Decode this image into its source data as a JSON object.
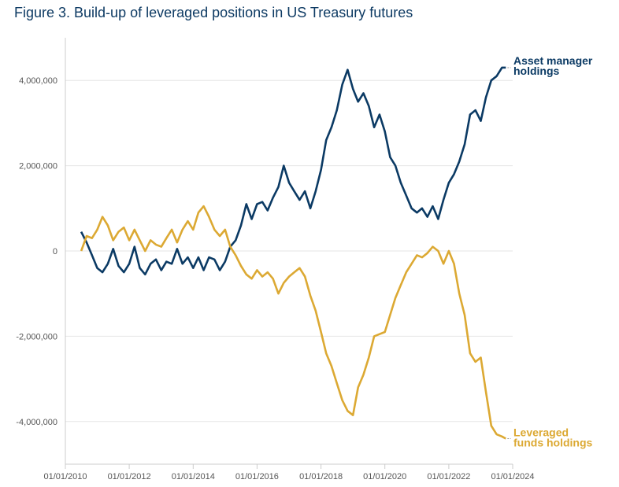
{
  "chart_data": {
    "type": "line",
    "title": "Figure 3. Build-up of leveraged positions in US Treasury futures",
    "xlabel": "",
    "ylabel": "",
    "xlim": [
      "2010-01-01",
      "2024-01-01"
    ],
    "ylim": [
      -5000000,
      5000000
    ],
    "x_ticks": [
      "01/01/2010",
      "01/01/2012",
      "01/01/2014",
      "01/01/2016",
      "01/01/2018",
      "01/01/2020",
      "01/01/2022",
      "01/01/2024"
    ],
    "y_ticks": [
      {
        "value": 4000000,
        "label": "4,000,000"
      },
      {
        "value": 2000000,
        "label": "2,000,000"
      },
      {
        "value": 0,
        "label": "0"
      },
      {
        "value": -2000000,
        "label": "-2,000,000"
      },
      {
        "value": -4000000,
        "label": "-4,000,000"
      }
    ],
    "grid": true,
    "legend": "direct labels at line ends (right)",
    "series": [
      {
        "name": "Asset manager holdings",
        "label_lines": [
          "Asset manager",
          "holdings"
        ],
        "color": "#0b3a64",
        "points": [
          [
            "2010-07-01",
            450000
          ],
          [
            "2010-09-01",
            200000
          ],
          [
            "2010-11-01",
            -100000
          ],
          [
            "2011-01-01",
            -400000
          ],
          [
            "2011-03-01",
            -500000
          ],
          [
            "2011-05-01",
            -300000
          ],
          [
            "2011-07-01",
            50000
          ],
          [
            "2011-09-01",
            -350000
          ],
          [
            "2011-11-01",
            -500000
          ],
          [
            "2012-01-01",
            -300000
          ],
          [
            "2012-03-01",
            100000
          ],
          [
            "2012-05-01",
            -400000
          ],
          [
            "2012-07-01",
            -550000
          ],
          [
            "2012-09-01",
            -300000
          ],
          [
            "2012-11-01",
            -200000
          ],
          [
            "2013-01-01",
            -450000
          ],
          [
            "2013-03-01",
            -250000
          ],
          [
            "2013-05-01",
            -300000
          ],
          [
            "2013-07-01",
            50000
          ],
          [
            "2013-09-01",
            -300000
          ],
          [
            "2013-11-01",
            -150000
          ],
          [
            "2014-01-01",
            -400000
          ],
          [
            "2014-03-01",
            -150000
          ],
          [
            "2014-05-01",
            -450000
          ],
          [
            "2014-07-01",
            -150000
          ],
          [
            "2014-09-01",
            -200000
          ],
          [
            "2014-11-01",
            -450000
          ],
          [
            "2015-01-01",
            -250000
          ],
          [
            "2015-03-01",
            100000
          ],
          [
            "2015-05-01",
            250000
          ],
          [
            "2015-07-01",
            600000
          ],
          [
            "2015-09-01",
            1100000
          ],
          [
            "2015-11-01",
            750000
          ],
          [
            "2016-01-01",
            1100000
          ],
          [
            "2016-03-01",
            1150000
          ],
          [
            "2016-05-01",
            950000
          ],
          [
            "2016-07-01",
            1250000
          ],
          [
            "2016-09-01",
            1500000
          ],
          [
            "2016-11-01",
            2000000
          ],
          [
            "2017-01-01",
            1600000
          ],
          [
            "2017-03-01",
            1400000
          ],
          [
            "2017-05-01",
            1200000
          ],
          [
            "2017-07-01",
            1400000
          ],
          [
            "2017-09-01",
            1000000
          ],
          [
            "2017-11-01",
            1400000
          ],
          [
            "2018-01-01",
            1900000
          ],
          [
            "2018-03-01",
            2600000
          ],
          [
            "2018-05-01",
            2900000
          ],
          [
            "2018-07-01",
            3300000
          ],
          [
            "2018-09-01",
            3900000
          ],
          [
            "2018-11-01",
            4250000
          ],
          [
            "2019-01-01",
            3800000
          ],
          [
            "2019-03-01",
            3500000
          ],
          [
            "2019-05-01",
            3700000
          ],
          [
            "2019-07-01",
            3400000
          ],
          [
            "2019-09-01",
            2900000
          ],
          [
            "2019-11-01",
            3200000
          ],
          [
            "2020-01-01",
            2800000
          ],
          [
            "2020-03-01",
            2200000
          ],
          [
            "2020-05-01",
            2000000
          ],
          [
            "2020-07-01",
            1600000
          ],
          [
            "2020-09-01",
            1300000
          ],
          [
            "2020-11-01",
            1000000
          ],
          [
            "2021-01-01",
            900000
          ],
          [
            "2021-03-01",
            1000000
          ],
          [
            "2021-05-01",
            800000
          ],
          [
            "2021-07-01",
            1050000
          ],
          [
            "2021-09-01",
            750000
          ],
          [
            "2021-11-01",
            1200000
          ],
          [
            "2022-01-01",
            1600000
          ],
          [
            "2022-03-01",
            1800000
          ],
          [
            "2022-05-01",
            2100000
          ],
          [
            "2022-07-01",
            2500000
          ],
          [
            "2022-09-01",
            3200000
          ],
          [
            "2022-11-01",
            3300000
          ],
          [
            "2023-01-01",
            3050000
          ],
          [
            "2023-03-01",
            3600000
          ],
          [
            "2023-05-01",
            4000000
          ],
          [
            "2023-07-01",
            4100000
          ],
          [
            "2023-09-01",
            4300000
          ],
          [
            "2023-10-15",
            4300000
          ]
        ]
      },
      {
        "name": "Leveraged funds holdings",
        "label_lines": [
          "Leveraged",
          "funds holdings"
        ],
        "color": "#dca933",
        "points": [
          [
            "2010-07-01",
            0
          ],
          [
            "2010-09-01",
            350000
          ],
          [
            "2010-11-01",
            300000
          ],
          [
            "2011-01-01",
            500000
          ],
          [
            "2011-03-01",
            800000
          ],
          [
            "2011-05-01",
            600000
          ],
          [
            "2011-07-01",
            250000
          ],
          [
            "2011-09-01",
            450000
          ],
          [
            "2011-11-01",
            550000
          ],
          [
            "2012-01-01",
            250000
          ],
          [
            "2012-03-01",
            500000
          ],
          [
            "2012-05-01",
            250000
          ],
          [
            "2012-07-01",
            0
          ],
          [
            "2012-09-01",
            250000
          ],
          [
            "2012-11-01",
            150000
          ],
          [
            "2013-01-01",
            100000
          ],
          [
            "2013-03-01",
            300000
          ],
          [
            "2013-05-01",
            500000
          ],
          [
            "2013-07-01",
            200000
          ],
          [
            "2013-09-01",
            500000
          ],
          [
            "2013-11-01",
            700000
          ],
          [
            "2014-01-01",
            500000
          ],
          [
            "2014-03-01",
            900000
          ],
          [
            "2014-05-01",
            1050000
          ],
          [
            "2014-07-01",
            800000
          ],
          [
            "2014-09-01",
            500000
          ],
          [
            "2014-11-01",
            350000
          ],
          [
            "2015-01-01",
            500000
          ],
          [
            "2015-03-01",
            100000
          ],
          [
            "2015-05-01",
            -100000
          ],
          [
            "2015-07-01",
            -350000
          ],
          [
            "2015-09-01",
            -550000
          ],
          [
            "2015-11-01",
            -650000
          ],
          [
            "2016-01-01",
            -450000
          ],
          [
            "2016-03-01",
            -600000
          ],
          [
            "2016-05-01",
            -500000
          ],
          [
            "2016-07-01",
            -650000
          ],
          [
            "2016-09-01",
            -1000000
          ],
          [
            "2016-11-01",
            -750000
          ],
          [
            "2017-01-01",
            -600000
          ],
          [
            "2017-03-01",
            -500000
          ],
          [
            "2017-05-01",
            -400000
          ],
          [
            "2017-07-01",
            -600000
          ],
          [
            "2017-09-01",
            -1050000
          ],
          [
            "2017-11-01",
            -1400000
          ],
          [
            "2018-01-01",
            -1900000
          ],
          [
            "2018-03-01",
            -2400000
          ],
          [
            "2018-05-01",
            -2700000
          ],
          [
            "2018-07-01",
            -3100000
          ],
          [
            "2018-09-01",
            -3500000
          ],
          [
            "2018-11-01",
            -3750000
          ],
          [
            "2019-01-01",
            -3850000
          ],
          [
            "2019-03-01",
            -3200000
          ],
          [
            "2019-05-01",
            -2900000
          ],
          [
            "2019-07-01",
            -2500000
          ],
          [
            "2019-09-01",
            -2000000
          ],
          [
            "2019-11-01",
            -1950000
          ],
          [
            "2020-01-01",
            -1900000
          ],
          [
            "2020-03-01",
            -1500000
          ],
          [
            "2020-05-01",
            -1100000
          ],
          [
            "2020-07-01",
            -800000
          ],
          [
            "2020-09-01",
            -500000
          ],
          [
            "2020-11-01",
            -300000
          ],
          [
            "2021-01-01",
            -100000
          ],
          [
            "2021-03-01",
            -150000
          ],
          [
            "2021-05-01",
            -50000
          ],
          [
            "2021-07-01",
            100000
          ],
          [
            "2021-09-01",
            0
          ],
          [
            "2021-11-01",
            -300000
          ],
          [
            "2022-01-01",
            0
          ],
          [
            "2022-03-01",
            -300000
          ],
          [
            "2022-05-01",
            -1000000
          ],
          [
            "2022-07-01",
            -1500000
          ],
          [
            "2022-09-01",
            -2400000
          ],
          [
            "2022-11-01",
            -2600000
          ],
          [
            "2023-01-01",
            -2500000
          ],
          [
            "2023-03-01",
            -3300000
          ],
          [
            "2023-05-01",
            -4100000
          ],
          [
            "2023-07-01",
            -4300000
          ],
          [
            "2023-09-01",
            -4350000
          ],
          [
            "2023-10-15",
            -4400000
          ]
        ]
      }
    ]
  }
}
